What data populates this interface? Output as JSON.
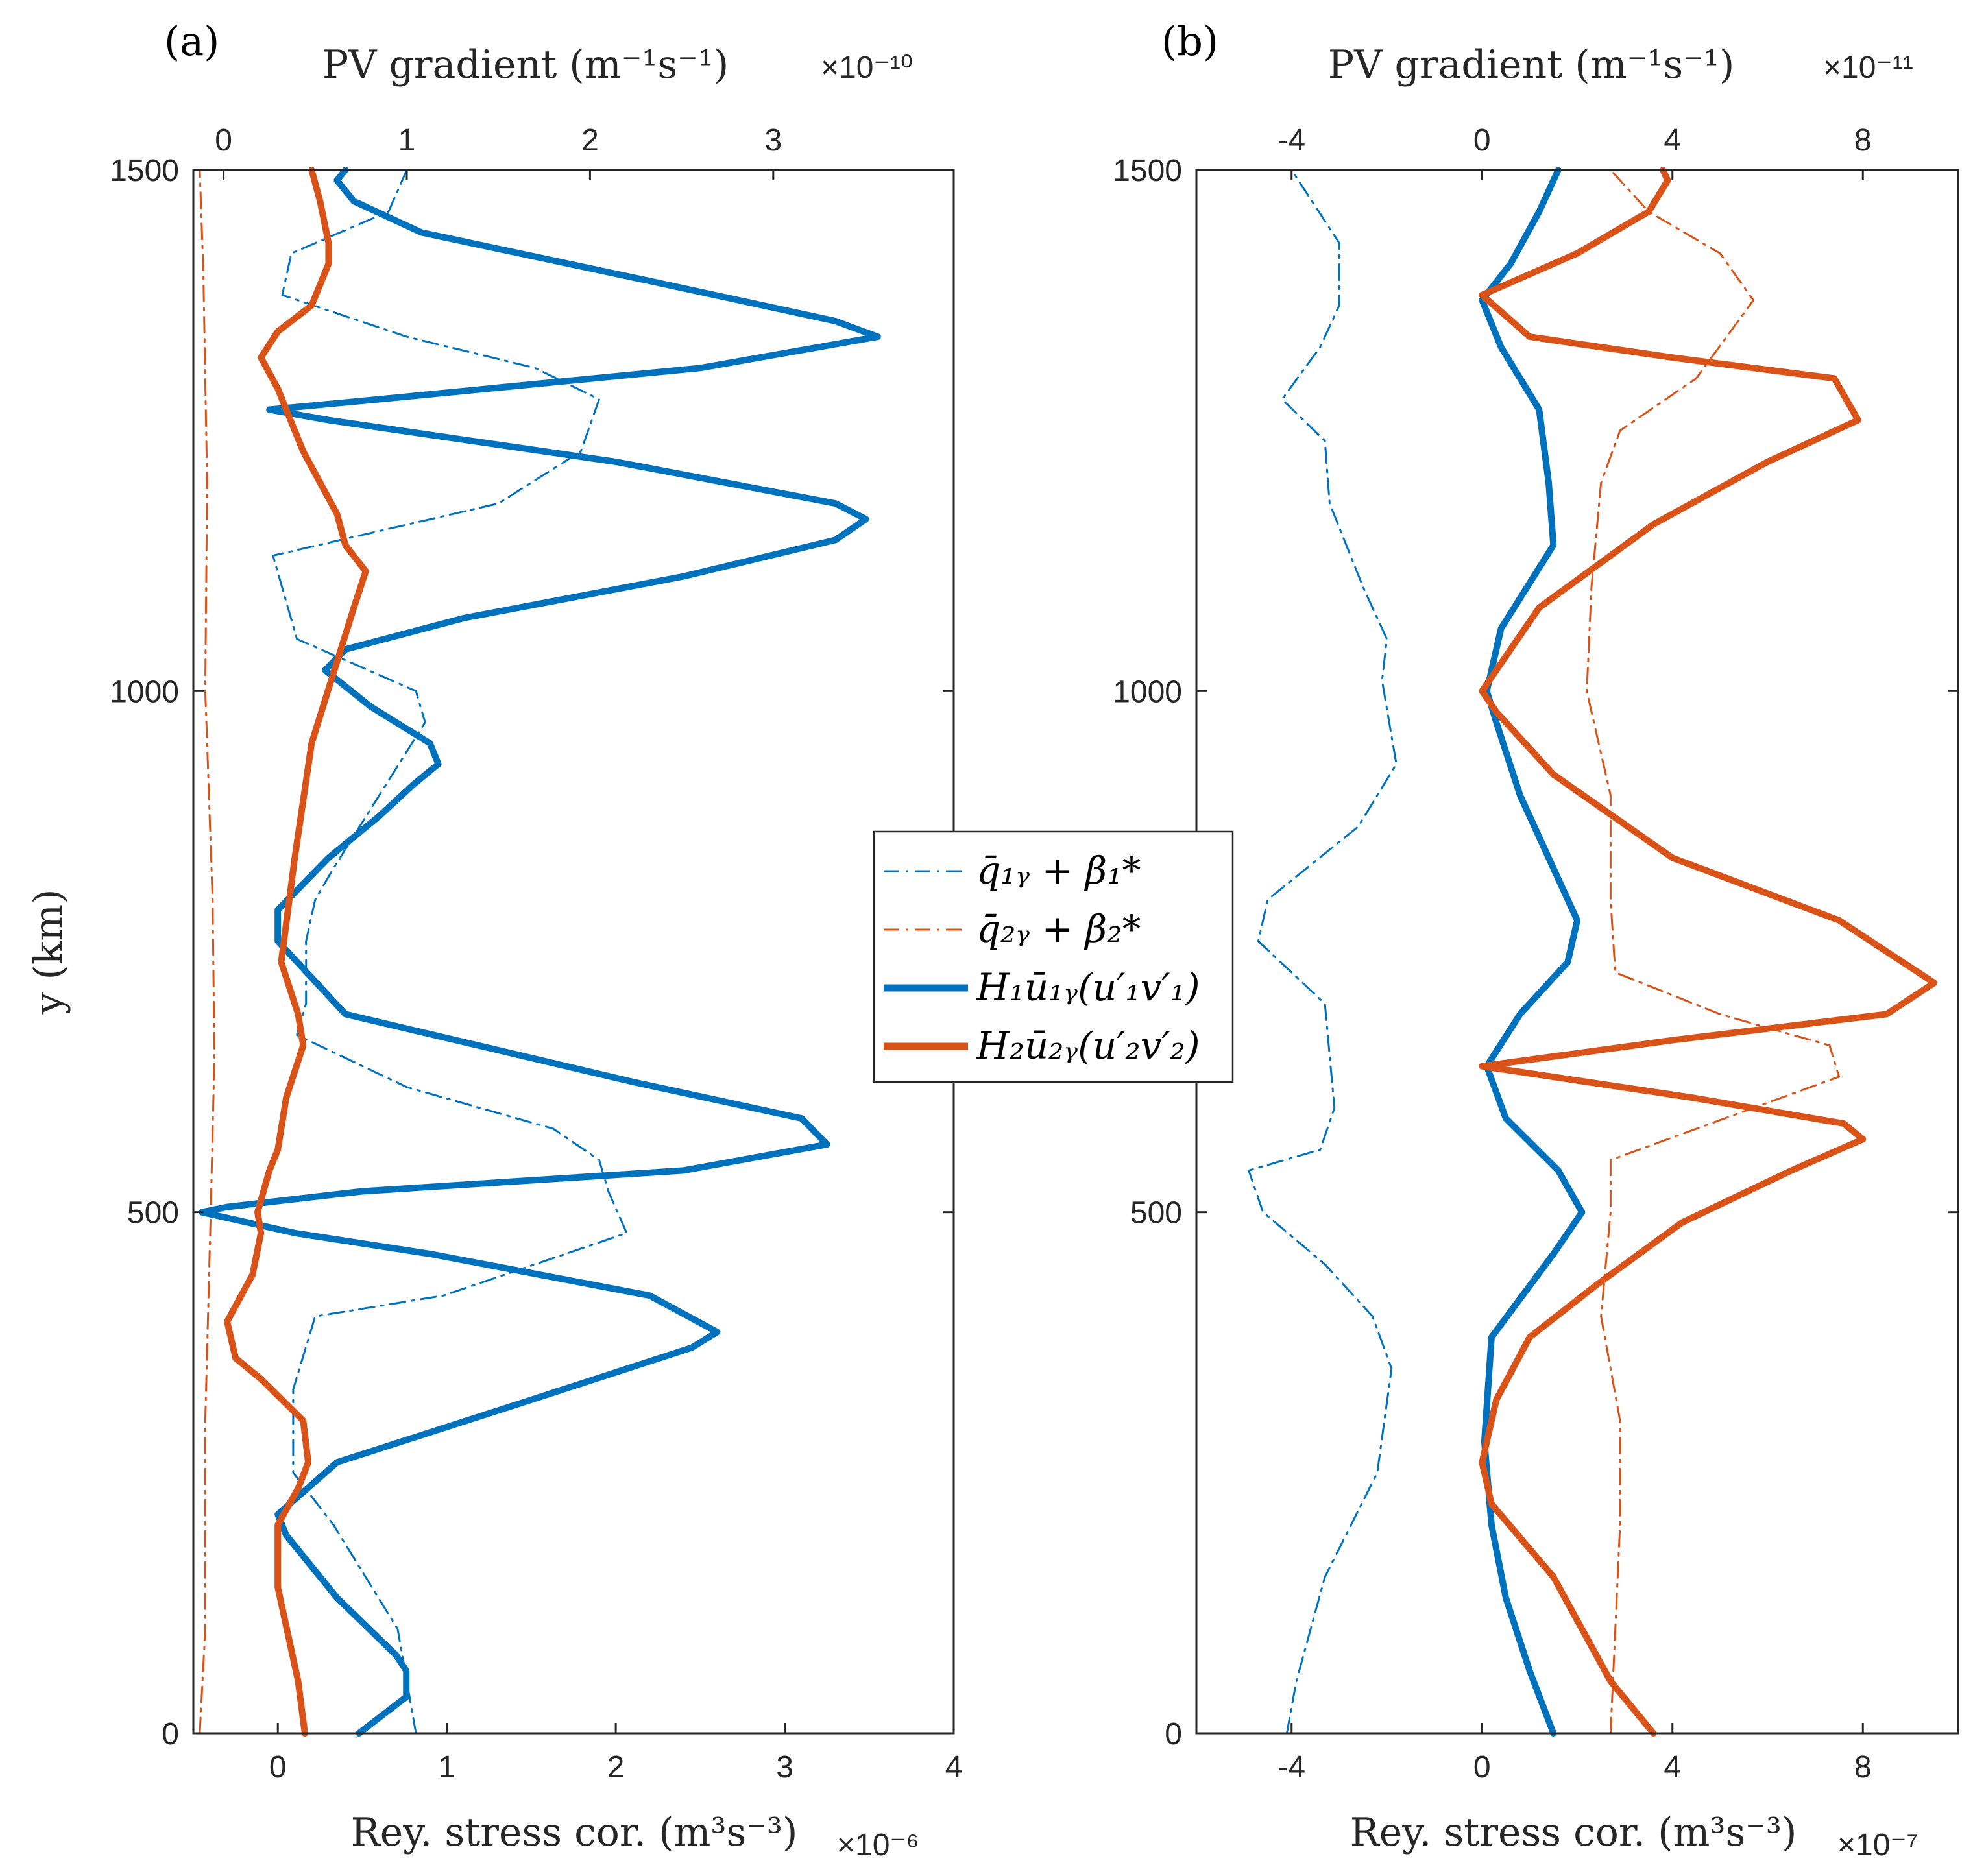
{
  "colors": {
    "blue": "#0072BD",
    "orange": "#D95319",
    "axis": "#262626"
  },
  "legend": {
    "items": [
      {
        "label": "q̄₁ᵧ + β₁*",
        "color": "#0072BD",
        "style": "dashdot"
      },
      {
        "label": "q̄₂ᵧ + β₂*",
        "color": "#D95319",
        "style": "dashdot"
      },
      {
        "label": "H₁ū₁ᵧ(u′₁v′₁)",
        "color": "#0072BD",
        "style": "solid"
      },
      {
        "label": "H₂ū₂ᵧ(u′₂v′₂)",
        "color": "#D95319",
        "style": "solid"
      }
    ]
  },
  "chart_data": [
    {
      "type": "line",
      "panel_label": "(a)",
      "title": "",
      "ylabel": "y (km)",
      "ylim": [
        0,
        1500
      ],
      "yticks": [
        0,
        500,
        1000,
        1500
      ],
      "bottom_axis": {
        "label": "Rey. stress cor. (m³s⁻³)",
        "multiplier": "×10⁻⁶",
        "lim": [
          -0.5,
          4
        ],
        "ticks": [
          0,
          1,
          2,
          3,
          4
        ]
      },
      "top_axis": {
        "label": "PV gradient (m⁻¹s⁻¹)",
        "multiplier": "×10⁻¹⁰",
        "lim": [
          -0.165,
          3.985
        ],
        "ticks": [
          0,
          1,
          2,
          3
        ]
      },
      "series": [
        {
          "name": "q̄₁ᵧ + β₁*",
          "axis": "top",
          "color": "#0072BD",
          "style": "dashdot",
          "points": [
            [
              1.05,
              0
            ],
            [
              1.0,
              50
            ],
            [
              0.95,
              100
            ],
            [
              0.6,
              200
            ],
            [
              0.38,
              250
            ],
            [
              0.38,
              330
            ],
            [
              0.5,
              400
            ],
            [
              1.2,
              420
            ],
            [
              2.2,
              480
            ],
            [
              2.1,
              520
            ],
            [
              2.05,
              550
            ],
            [
              1.8,
              580
            ],
            [
              1.0,
              620
            ],
            [
              0.4,
              670
            ],
            [
              0.45,
              700
            ],
            [
              0.45,
              760
            ],
            [
              0.5,
              800
            ],
            [
              0.6,
              830
            ],
            [
              0.85,
              900
            ],
            [
              1.1,
              970
            ],
            [
              1.05,
              1000
            ],
            [
              0.4,
              1050
            ],
            [
              0.27,
              1130
            ],
            [
              1.5,
              1180
            ],
            [
              1.95,
              1230
            ],
            [
              2.05,
              1280
            ],
            [
              1.7,
              1310
            ],
            [
              1.0,
              1340
            ],
            [
              0.32,
              1380
            ],
            [
              0.37,
              1420
            ],
            [
              0.9,
              1460
            ],
            [
              1.0,
              1500
            ]
          ]
        },
        {
          "name": "q̄₂ᵧ + β₂*",
          "axis": "top",
          "color": "#D95319",
          "style": "dashdot",
          "points": [
            [
              -0.13,
              0
            ],
            [
              -0.1,
              100
            ],
            [
              -0.1,
              300
            ],
            [
              -0.07,
              500
            ],
            [
              -0.05,
              650
            ],
            [
              -0.06,
              800
            ],
            [
              -0.1,
              1000
            ],
            [
              -0.09,
              1200
            ],
            [
              -0.11,
              1400
            ],
            [
              -0.13,
              1500
            ]
          ]
        },
        {
          "name": "H₁ū₁ᵧ(u′₁v′₁)",
          "axis": "bottom",
          "color": "#0072BD",
          "style": "solid",
          "points": [
            [
              0.48,
              0
            ],
            [
              0.76,
              35
            ],
            [
              0.76,
              60
            ],
            [
              0.7,
              75
            ],
            [
              0.35,
              130
            ],
            [
              0.05,
              190
            ],
            [
              0.0,
              210
            ],
            [
              0.35,
              260
            ],
            [
              1.5,
              320
            ],
            [
              2.45,
              370
            ],
            [
              2.6,
              385
            ],
            [
              2.2,
              420
            ],
            [
              0.9,
              460
            ],
            [
              0.1,
              480
            ],
            [
              -0.45,
              500
            ],
            [
              -0.3,
              505
            ],
            [
              0.5,
              520
            ],
            [
              2.4,
              540
            ],
            [
              3.25,
              565
            ],
            [
              3.1,
              590
            ],
            [
              2.1,
              625
            ],
            [
              0.4,
              690
            ],
            [
              0.0,
              760
            ],
            [
              0.0,
              790
            ],
            [
              0.3,
              840
            ],
            [
              0.6,
              880
            ],
            [
              0.8,
              910
            ],
            [
              0.95,
              930
            ],
            [
              0.9,
              950
            ],
            [
              0.55,
              985
            ],
            [
              0.28,
              1020
            ],
            [
              0.4,
              1040
            ],
            [
              1.1,
              1070
            ],
            [
              2.4,
              1110
            ],
            [
              3.3,
              1145
            ],
            [
              3.48,
              1165
            ],
            [
              3.3,
              1180
            ],
            [
              2.0,
              1220
            ],
            [
              0.3,
              1260
            ],
            [
              -0.05,
              1270
            ],
            [
              0.6,
              1280
            ],
            [
              2.5,
              1310
            ],
            [
              3.55,
              1340
            ],
            [
              3.3,
              1355
            ],
            [
              2.3,
              1390
            ],
            [
              0.85,
              1440
            ],
            [
              0.45,
              1470
            ],
            [
              0.35,
              1490
            ],
            [
              0.4,
              1500
            ]
          ]
        },
        {
          "name": "H₂ū₂ᵧ(u′₂v′₂)",
          "axis": "bottom",
          "color": "#D95319",
          "style": "solid",
          "points": [
            [
              0.16,
              0
            ],
            [
              0.12,
              50
            ],
            [
              0.0,
              140
            ],
            [
              0.0,
              200
            ],
            [
              0.12,
              235
            ],
            [
              0.18,
              260
            ],
            [
              0.15,
              300
            ],
            [
              -0.1,
              340
            ],
            [
              -0.25,
              360
            ],
            [
              -0.3,
              395
            ],
            [
              -0.15,
              440
            ],
            [
              -0.1,
              480
            ],
            [
              -0.12,
              500
            ],
            [
              -0.05,
              540
            ],
            [
              0.0,
              560
            ],
            [
              0.05,
              610
            ],
            [
              0.15,
              660
            ],
            [
              0.12,
              690
            ],
            [
              0.02,
              740
            ],
            [
              0.1,
              840
            ],
            [
              0.2,
              950
            ],
            [
              0.45,
              1080
            ],
            [
              0.52,
              1115
            ],
            [
              0.4,
              1140
            ],
            [
              0.35,
              1170
            ],
            [
              0.15,
              1230
            ],
            [
              0.0,
              1290
            ],
            [
              -0.1,
              1320
            ],
            [
              0.0,
              1345
            ],
            [
              0.2,
              1370
            ],
            [
              0.3,
              1410
            ],
            [
              0.3,
              1430
            ],
            [
              0.25,
              1470
            ],
            [
              0.2,
              1500
            ]
          ]
        }
      ]
    },
    {
      "type": "line",
      "panel_label": "(b)",
      "title": "",
      "ylabel": "",
      "ylim": [
        0,
        1500
      ],
      "yticks": [
        0,
        500,
        1000,
        1500
      ],
      "bottom_axis": {
        "label": "Rey. stress cor. (m³s⁻³)",
        "multiplier": "×10⁻⁷",
        "lim": [
          -6,
          10
        ],
        "ticks": [
          -4,
          0,
          4,
          8
        ]
      },
      "top_axis": {
        "label": "PV gradient (m⁻¹s⁻¹)",
        "multiplier": "×10⁻¹¹",
        "lim": [
          -6,
          10
        ],
        "ticks": [
          -4,
          0,
          4,
          8
        ]
      },
      "series": [
        {
          "name": "q̄₁ᵧ + β₁*",
          "axis": "top",
          "color": "#0072BD",
          "style": "dashdot",
          "points": [
            [
              -4.1,
              0
            ],
            [
              -3.9,
              50
            ],
            [
              -3.3,
              150
            ],
            [
              -2.2,
              250
            ],
            [
              -1.9,
              350
            ],
            [
              -2.3,
              400
            ],
            [
              -3.3,
              450
            ],
            [
              -4.6,
              500
            ],
            [
              -4.9,
              540
            ],
            [
              -3.4,
              560
            ],
            [
              -3.1,
              600
            ],
            [
              -3.3,
              700
            ],
            [
              -4.7,
              760
            ],
            [
              -4.5,
              800
            ],
            [
              -2.6,
              870
            ],
            [
              -1.8,
              930
            ],
            [
              -2.1,
              1010
            ],
            [
              -2.0,
              1050
            ],
            [
              -2.5,
              1100
            ],
            [
              -3.2,
              1180
            ],
            [
              -3.3,
              1240
            ],
            [
              -4.2,
              1280
            ],
            [
              -3.4,
              1330
            ],
            [
              -3.0,
              1370
            ],
            [
              -3.0,
              1430
            ],
            [
              -4.0,
              1500
            ]
          ]
        },
        {
          "name": "q̄₂ᵧ + β₂*",
          "axis": "top",
          "color": "#D95319",
          "style": "dashdot",
          "points": [
            [
              2.7,
              0
            ],
            [
              2.8,
              100
            ],
            [
              2.9,
              200
            ],
            [
              2.9,
              300
            ],
            [
              2.5,
              400
            ],
            [
              2.7,
              500
            ],
            [
              2.7,
              550
            ],
            [
              4.5,
              580
            ],
            [
              7.5,
              630
            ],
            [
              7.3,
              660
            ],
            [
              5.0,
              690
            ],
            [
              2.8,
              730
            ],
            [
              2.7,
              800
            ],
            [
              2.7,
              900
            ],
            [
              2.2,
              1000
            ],
            [
              2.3,
              1100
            ],
            [
              2.5,
              1200
            ],
            [
              2.9,
              1250
            ],
            [
              4.5,
              1300
            ],
            [
              5.7,
              1375
            ],
            [
              5.0,
              1420
            ],
            [
              3.5,
              1460
            ],
            [
              2.7,
              1500
            ]
          ]
        },
        {
          "name": "H₁ū₁ᵧ(u′₁v′₁)",
          "axis": "bottom",
          "color": "#0072BD",
          "style": "solid",
          "points": [
            [
              1.5,
              0
            ],
            [
              1.0,
              60
            ],
            [
              0.5,
              130
            ],
            [
              0.2,
              200
            ],
            [
              0.05,
              280
            ],
            [
              0.2,
              380
            ],
            [
              1.5,
              460
            ],
            [
              2.1,
              500
            ],
            [
              1.6,
              540
            ],
            [
              0.5,
              590
            ],
            [
              0.1,
              640
            ],
            [
              0.8,
              690
            ],
            [
              1.8,
              740
            ],
            [
              2.0,
              780
            ],
            [
              1.5,
              830
            ],
            [
              0.8,
              900
            ],
            [
              0.3,
              970
            ],
            [
              0.1,
              1000
            ],
            [
              0.4,
              1060
            ],
            [
              1.5,
              1140
            ],
            [
              1.4,
              1200
            ],
            [
              1.2,
              1270
            ],
            [
              0.4,
              1330
            ],
            [
              0.0,
              1375
            ],
            [
              0.6,
              1410
            ],
            [
              1.2,
              1460
            ],
            [
              1.6,
              1500
            ]
          ]
        },
        {
          "name": "H₂ū₂ᵧ(u′₂v′₂)",
          "axis": "bottom",
          "color": "#D95319",
          "style": "solid",
          "points": [
            [
              3.6,
              0
            ],
            [
              2.7,
              50
            ],
            [
              1.5,
              150
            ],
            [
              0.2,
              220
            ],
            [
              0.0,
              260
            ],
            [
              0.3,
              320
            ],
            [
              1.0,
              380
            ],
            [
              2.4,
              430
            ],
            [
              4.2,
              490
            ],
            [
              6.5,
              540
            ],
            [
              8.0,
              570
            ],
            [
              7.6,
              585
            ],
            [
              4.4,
              610
            ],
            [
              0.0,
              640
            ],
            [
              4.0,
              665
            ],
            [
              8.5,
              690
            ],
            [
              9.5,
              720
            ],
            [
              7.5,
              780
            ],
            [
              4.0,
              840
            ],
            [
              1.5,
              920
            ],
            [
              0.3,
              980
            ],
            [
              0.0,
              1000
            ],
            [
              1.2,
              1080
            ],
            [
              3.6,
              1160
            ],
            [
              6.0,
              1220
            ],
            [
              7.9,
              1260
            ],
            [
              7.4,
              1300
            ],
            [
              4.0,
              1320
            ],
            [
              1.0,
              1340
            ],
            [
              0.0,
              1380
            ],
            [
              2.0,
              1420
            ],
            [
              3.5,
              1460
            ],
            [
              3.9,
              1490
            ],
            [
              3.8,
              1500
            ]
          ]
        }
      ]
    }
  ]
}
